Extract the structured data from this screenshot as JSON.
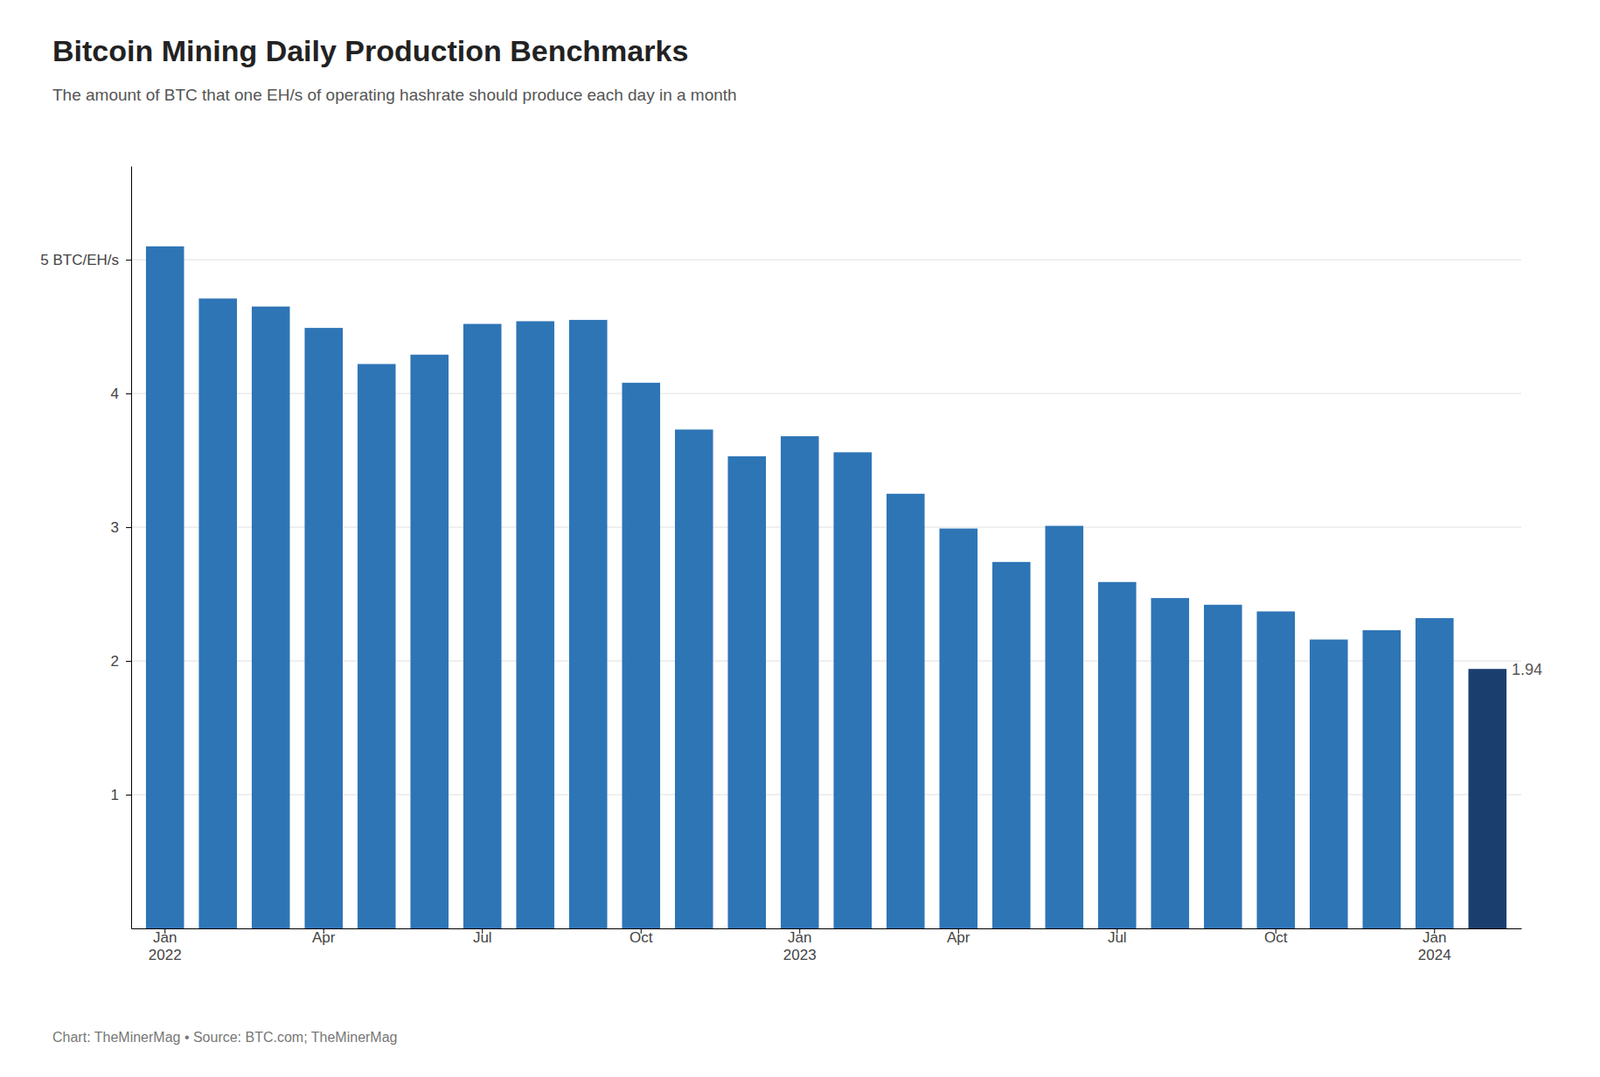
{
  "chart_data": {
    "type": "bar",
    "title": "Bitcoin Mining Daily Production Benchmarks",
    "subtitle": "The amount of BTC that one EH/s of operating hashrate should produce each day in a month",
    "categories": [
      "Jan\n2022",
      null,
      null,
      "Apr",
      null,
      null,
      "Jul",
      null,
      null,
      "Oct",
      null,
      null,
      "Jan\n2023",
      null,
      null,
      "Apr",
      null,
      null,
      "Jul",
      null,
      null,
      "Oct",
      null,
      null,
      "Jan\n2024",
      null
    ],
    "values": [
      5.1,
      4.71,
      4.65,
      4.49,
      4.22,
      4.29,
      4.52,
      4.54,
      4.55,
      4.08,
      3.73,
      3.53,
      3.68,
      3.56,
      3.25,
      2.99,
      2.74,
      3.01,
      2.59,
      2.47,
      2.42,
      2.37,
      2.16,
      2.23,
      2.32,
      1.94
    ],
    "colors": [
      "#2e75b6",
      "#2e75b6",
      "#2e75b6",
      "#2e75b6",
      "#2e75b6",
      "#2e75b6",
      "#2e75b6",
      "#2e75b6",
      "#2e75b6",
      "#2e75b6",
      "#2e75b6",
      "#2e75b6",
      "#2e75b6",
      "#2e75b6",
      "#2e75b6",
      "#2e75b6",
      "#2e75b6",
      "#2e75b6",
      "#2e75b6",
      "#2e75b6",
      "#2e75b6",
      "#2e75b6",
      "#2e75b6",
      "#2e75b6",
      "#2e75b6",
      "#1a3f6f"
    ],
    "ylim": [
      0,
      5.7
    ],
    "yticks": [
      1,
      2,
      3,
      4,
      {
        "value": 5,
        "label": "5 BTC/EH/s"
      }
    ],
    "grid": true,
    "annotation": "1.94",
    "footer": "Chart: TheMinerMag  •  Source: BTC.com; TheMinerMag"
  }
}
